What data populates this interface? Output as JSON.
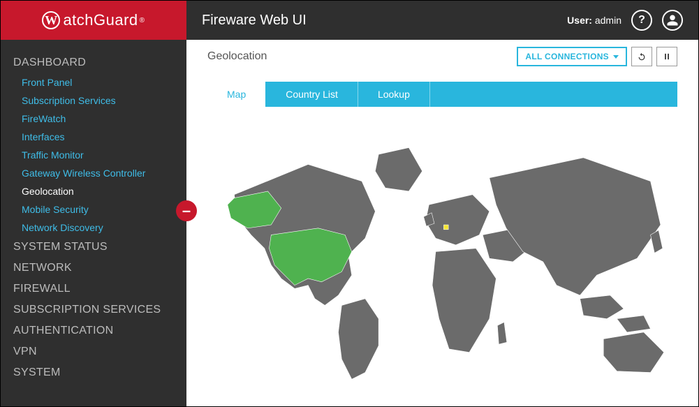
{
  "colors": {
    "brand_red": "#c7182c",
    "dark": "#2f2f2f",
    "accent": "#29b6dd",
    "link": "#3fbde8",
    "map_land": "#6b6b6b",
    "map_border": "#ffffff",
    "highlight_green": "#4fb24f",
    "highlight_yellow": "#f6e531",
    "page_bg": "#ffffff",
    "text_muted": "#555555",
    "sidebar_section": "#bcbcbc"
  },
  "logo": {
    "text": "atchGuard",
    "mark_letter": "W",
    "trademark": "®"
  },
  "app_title": "Fireware Web UI",
  "user": {
    "label": "User:",
    "name": "admin"
  },
  "sidebar": {
    "sections": [
      {
        "label": "DASHBOARD",
        "expanded": true,
        "items": [
          {
            "label": "Front Panel"
          },
          {
            "label": "Subscription Services"
          },
          {
            "label": "FireWatch"
          },
          {
            "label": "Interfaces"
          },
          {
            "label": "Traffic Monitor"
          },
          {
            "label": "Gateway Wireless Controller"
          },
          {
            "label": "Geolocation",
            "active": true
          },
          {
            "label": "Mobile Security"
          },
          {
            "label": "Network Discovery"
          }
        ]
      },
      {
        "label": "SYSTEM STATUS"
      },
      {
        "label": "NETWORK"
      },
      {
        "label": "FIREWALL"
      },
      {
        "label": "SUBSCRIPTION SERVICES"
      },
      {
        "label": "AUTHENTICATION"
      },
      {
        "label": "VPN"
      },
      {
        "label": "SYSTEM"
      }
    ],
    "collapse_glyph": "–"
  },
  "page": {
    "title": "Geolocation",
    "connections_dropdown": "ALL CONNECTIONS",
    "tabs": [
      {
        "label": "Map",
        "active": true
      },
      {
        "label": "Country List"
      },
      {
        "label": "Lookup"
      }
    ]
  },
  "map": {
    "type": "choropleth-world",
    "background": "#ffffff",
    "default_fill": "#6b6b6b",
    "stroke": "#ffffff",
    "stroke_width": 0.6,
    "highlights": [
      {
        "region": "United States",
        "fill": "#4fb24f"
      },
      {
        "region": "Netherlands",
        "fill": "#f6e531"
      }
    ]
  }
}
